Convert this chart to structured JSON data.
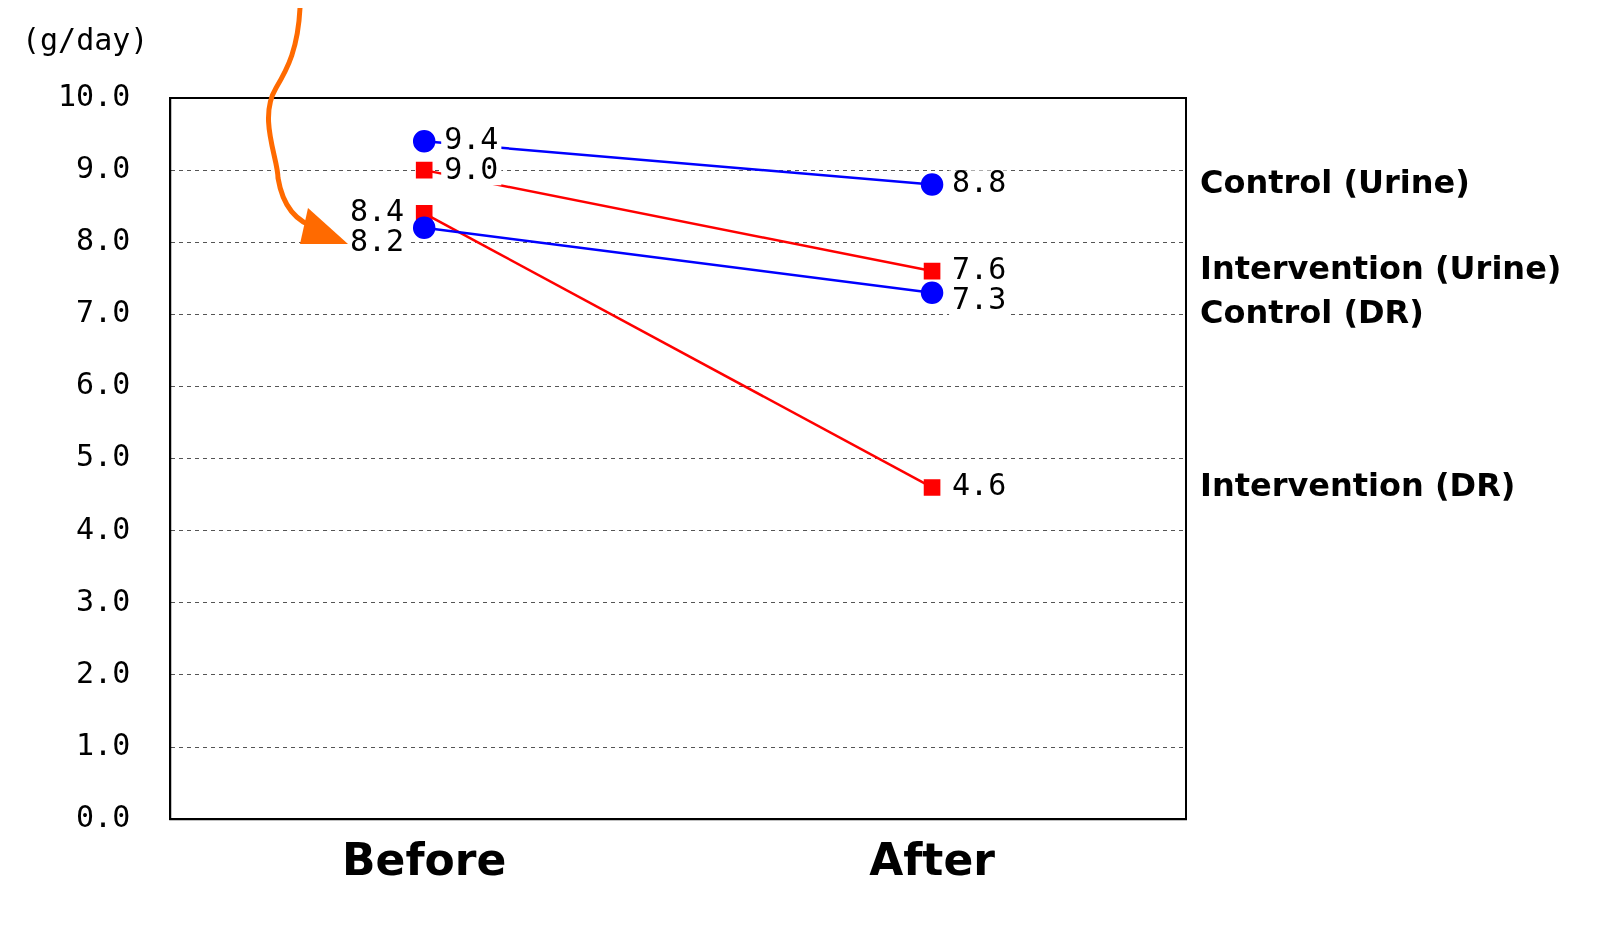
{
  "chart_data": {
    "type": "line",
    "ylabel": "(g/day)",
    "categories": [
      "Before",
      "After"
    ],
    "series": [
      {
        "name": "Control (Urine)",
        "color": "#0000ff",
        "marker": "circle",
        "values": [
          9.4,
          8.8
        ],
        "value_labels": [
          "9.4",
          "8.8"
        ]
      },
      {
        "name": "Intervention (Urine)",
        "color": "#ff0000",
        "marker": "square",
        "values": [
          9.0,
          7.6
        ],
        "value_labels": [
          "9.0",
          "7.6"
        ]
      },
      {
        "name": "Control (DR)",
        "color": "#0000ff",
        "marker": "circle",
        "values": [
          8.2,
          7.3
        ],
        "value_labels": [
          "8.2",
          "7.3"
        ]
      },
      {
        "name": "Intervention (DR)",
        "color": "#ff0000",
        "marker": "square",
        "values": [
          8.4,
          4.6
        ],
        "value_labels": [
          "8.4",
          "4.6"
        ]
      }
    ],
    "ylim": [
      0,
      10
    ],
    "yticks": [
      {
        "value": 0,
        "label": "0.0"
      },
      {
        "value": 1,
        "label": "1.0"
      },
      {
        "value": 2,
        "label": "2.0"
      },
      {
        "value": 3,
        "label": "3.0"
      },
      {
        "value": 4,
        "label": "4.0"
      },
      {
        "value": 5,
        "label": "5.0"
      },
      {
        "value": 6,
        "label": "6.0"
      },
      {
        "value": 7,
        "label": "7.0"
      },
      {
        "value": 8,
        "label": "8.0"
      },
      {
        "value": 9,
        "label": "9.0"
      },
      {
        "value": 10,
        "label": "10.0"
      }
    ],
    "grid": "y",
    "legend": false
  }
}
